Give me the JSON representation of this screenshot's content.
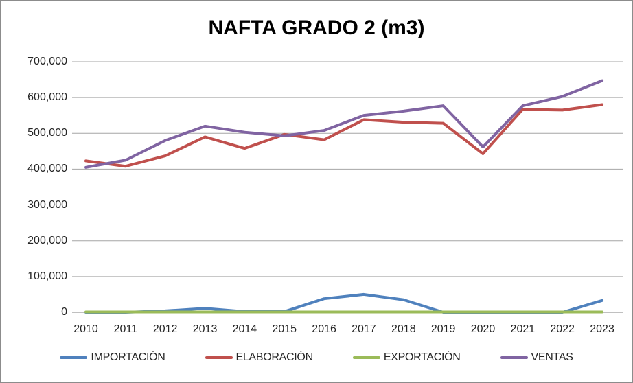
{
  "chart_title": "NAFTA GRADO 2 (m3)",
  "chart_data": {
    "type": "line",
    "title": "NAFTA GRADO 2 (m3)",
    "categories": [
      "2010",
      "2011",
      "2012",
      "2013",
      "2014",
      "2015",
      "2016",
      "2017",
      "2018",
      "2019",
      "2020",
      "2021",
      "2022",
      "2023"
    ],
    "series": [
      {
        "name": "IMPORTACIÓN",
        "color": "#4F81BD",
        "values": [
          0,
          0,
          4000,
          11000,
          2000,
          2000,
          38000,
          50000,
          35000,
          0,
          0,
          0,
          0,
          33000
        ]
      },
      {
        "name": "ELABORACIÓN",
        "color": "#C0504D",
        "values": [
          423000,
          408000,
          437000,
          490000,
          458000,
          497000,
          482000,
          538000,
          531000,
          528000,
          443000,
          567000,
          565000,
          580000
        ]
      },
      {
        "name": "EXPORTACIÓN",
        "color": "#9BBB59",
        "values": [
          1000,
          1000,
          1000,
          1000,
          1000,
          1000,
          1000,
          1000,
          1000,
          1000,
          1000,
          1000,
          1000,
          1000
        ]
      },
      {
        "name": "VENTAS",
        "color": "#8064A2",
        "values": [
          405000,
          425000,
          480000,
          520000,
          503000,
          493000,
          508000,
          550000,
          562000,
          577000,
          462000,
          577000,
          603000,
          647000
        ]
      }
    ],
    "ylim": [
      0,
      700000
    ],
    "ytick_step": 100000,
    "ytick_labels": [
      "0",
      "100,000",
      "200,000",
      "300,000",
      "400,000",
      "500,000",
      "600,000",
      "700,000"
    ],
    "grid": "horizontal",
    "legend_position": "bottom"
  },
  "colors": {
    "gridline": "#a6a6a6",
    "axis_line": "#808080",
    "border": "#8c8c8c",
    "background": "#ffffff",
    "title_text": "#000000",
    "tick_text": "#262626"
  }
}
